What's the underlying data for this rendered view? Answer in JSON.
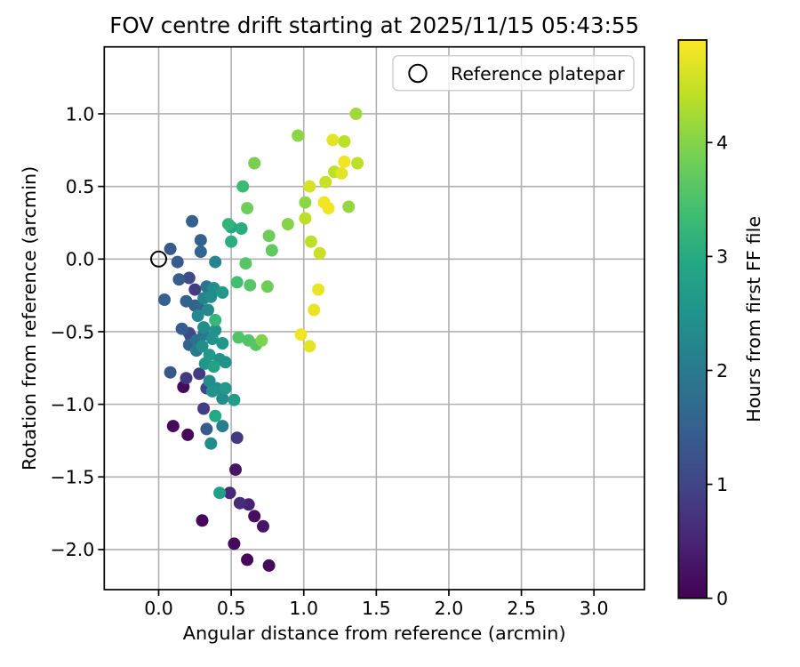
{
  "figure": {
    "title": "FOV centre drift starting at 2025/11/15 05:43:55"
  },
  "chart_data": {
    "type": "scatter",
    "title": "FOV centre drift starting at 2025/11/15 05:43:55",
    "xlabel": "Angular distance from reference (arcmin)",
    "ylabel": "Rotation from reference (arcmin)",
    "xlim": [
      -0.375,
      3.348
    ],
    "ylim": [
      -2.276,
      1.461
    ],
    "xticks": [
      0.0,
      0.5,
      1.0,
      1.5,
      2.0,
      2.5,
      3.0
    ],
    "yticks": [
      1.0,
      0.5,
      0.0,
      -0.5,
      -1.0,
      -1.5,
      -2.0
    ],
    "grid": true,
    "legend": {
      "position": "upper right",
      "entries": [
        {
          "label": "Reference platepar",
          "marker": "open-circle"
        }
      ]
    },
    "colorbar": {
      "label": "Hours from first FF file",
      "colormap": "viridis",
      "vmin": 0,
      "vmax": 4.9,
      "ticks": [
        0,
        1,
        2,
        3,
        4
      ]
    },
    "reference_point": {
      "x": 0.0,
      "y": 0.0
    },
    "series": [
      {
        "name": "FOV centre drift",
        "color_by": "hours_from_first_FF_file",
        "points": [
          [
            0.3,
            -1.8,
            0.08
          ],
          [
            0.61,
            -2.07,
            0.1
          ],
          [
            0.1,
            -1.15,
            0.1
          ],
          [
            0.2,
            -1.21,
            0.1
          ],
          [
            0.17,
            -0.88,
            0.12
          ],
          [
            0.52,
            -1.96,
            0.12
          ],
          [
            0.76,
            -2.11,
            0.15
          ],
          [
            0.66,
            -1.77,
            0.2
          ],
          [
            0.53,
            -1.45,
            0.25
          ],
          [
            0.72,
            -1.84,
            0.28
          ],
          [
            0.62,
            -1.69,
            0.45
          ],
          [
            0.49,
            -1.61,
            0.55
          ],
          [
            0.56,
            -1.68,
            0.6
          ],
          [
            0.25,
            -0.21,
            0.85
          ],
          [
            0.54,
            -1.23,
            0.8
          ],
          [
            0.28,
            -0.79,
            0.85
          ],
          [
            0.31,
            -1.03,
            0.88
          ],
          [
            0.19,
            -0.82,
            0.8
          ],
          [
            0.33,
            -0.89,
            1.0
          ],
          [
            0.21,
            -0.13,
            1.1
          ],
          [
            0.22,
            -0.53,
            1.05
          ],
          [
            0.21,
            -0.51,
            1.1
          ],
          [
            0.08,
            0.07,
            1.4
          ],
          [
            0.13,
            -0.02,
            1.4
          ],
          [
            0.14,
            -0.14,
            1.4
          ],
          [
            0.33,
            -1.17,
            1.4
          ],
          [
            0.08,
            -0.78,
            1.35
          ],
          [
            0.23,
            0.26,
            1.5
          ],
          [
            0.29,
            0.13,
            1.5
          ],
          [
            0.19,
            -0.29,
            1.5
          ],
          [
            0.25,
            -0.32,
            1.5
          ],
          [
            0.04,
            -0.28,
            1.5
          ],
          [
            0.16,
            -0.48,
            1.45
          ],
          [
            0.29,
            0.05,
            1.6
          ],
          [
            0.28,
            -0.34,
            1.6
          ],
          [
            0.21,
            -0.59,
            1.55
          ],
          [
            0.33,
            -0.19,
            1.9
          ],
          [
            0.26,
            -0.56,
            1.85
          ],
          [
            0.31,
            -0.52,
            1.95
          ],
          [
            0.26,
            -0.63,
            2.0
          ],
          [
            0.44,
            -1.15,
            2.1
          ],
          [
            0.39,
            -0.02,
            2.2
          ],
          [
            0.31,
            -0.27,
            2.2
          ],
          [
            0.34,
            -0.35,
            2.3
          ],
          [
            0.27,
            -0.39,
            2.3
          ],
          [
            0.35,
            -0.84,
            2.35
          ],
          [
            0.38,
            -0.2,
            2.4
          ],
          [
            0.36,
            -0.26,
            2.4
          ],
          [
            0.31,
            -0.47,
            2.4
          ],
          [
            0.3,
            -0.6,
            2.4
          ],
          [
            0.4,
            -0.89,
            2.4
          ],
          [
            0.44,
            -0.96,
            2.4
          ],
          [
            0.36,
            -1.27,
            2.4
          ],
          [
            0.39,
            -0.49,
            2.5
          ],
          [
            0.37,
            -0.55,
            2.5
          ],
          [
            0.42,
            -0.69,
            2.5
          ],
          [
            0.46,
            -0.71,
            2.5
          ],
          [
            0.37,
            -0.91,
            2.5
          ],
          [
            0.44,
            -0.58,
            2.55
          ],
          [
            0.32,
            -0.72,
            2.55
          ],
          [
            0.44,
            -0.23,
            2.6
          ],
          [
            0.35,
            -0.66,
            2.6
          ],
          [
            0.46,
            -0.89,
            2.6
          ],
          [
            0.52,
            -0.97,
            2.7
          ],
          [
            0.42,
            -1.61,
            2.75
          ],
          [
            0.38,
            -0.74,
            2.8
          ],
          [
            0.39,
            -1.08,
            2.95
          ],
          [
            0.5,
            0.22,
            2.95
          ],
          [
            0.5,
            0.12,
            3.05
          ],
          [
            0.57,
            0.21,
            3.05
          ],
          [
            0.48,
            0.24,
            3.2
          ],
          [
            0.58,
            0.5,
            3.35
          ],
          [
            0.54,
            -0.16,
            3.4
          ],
          [
            0.39,
            -0.42,
            3.25
          ],
          [
            0.6,
            -0.03,
            3.6
          ],
          [
            0.63,
            -0.18,
            3.6
          ],
          [
            0.55,
            -0.54,
            3.55
          ],
          [
            0.62,
            -0.56,
            3.55
          ],
          [
            0.67,
            -0.59,
            3.6
          ],
          [
            0.78,
            0.06,
            3.7
          ],
          [
            0.76,
            0.16,
            3.8
          ],
          [
            0.75,
            -0.19,
            3.8
          ],
          [
            0.66,
            0.66,
            3.9
          ],
          [
            0.61,
            0.35,
            3.8
          ],
          [
            0.71,
            -0.56,
            3.95
          ],
          [
            0.89,
            0.24,
            4.0
          ],
          [
            0.96,
            0.85,
            4.05
          ],
          [
            1.01,
            0.39,
            4.05
          ],
          [
            1.31,
            0.36,
            4.1
          ],
          [
            1.36,
            1.0,
            4.2
          ],
          [
            1.28,
            0.81,
            4.4
          ],
          [
            1.21,
            0.6,
            4.4
          ],
          [
            1.01,
            0.28,
            4.4
          ],
          [
            1.05,
            0.12,
            4.4
          ],
          [
            1.37,
            0.66,
            4.4
          ],
          [
            1.15,
            0.53,
            4.5
          ],
          [
            1.11,
            0.04,
            4.5
          ],
          [
            1.04,
            0.5,
            4.6
          ],
          [
            1.2,
            0.82,
            4.7
          ],
          [
            1.26,
            0.59,
            4.7
          ],
          [
            1.04,
            -0.6,
            4.7
          ],
          [
            1.1,
            -0.21,
            4.75
          ],
          [
            1.07,
            -0.35,
            4.75
          ],
          [
            1.28,
            0.67,
            4.8
          ],
          [
            1.14,
            0.39,
            4.8
          ],
          [
            1.17,
            0.35,
            4.8
          ],
          [
            0.98,
            -0.52,
            4.8
          ]
        ]
      }
    ]
  },
  "colors": {
    "background": "#ffffff",
    "grid": "#b0b0b0",
    "spine": "#000000",
    "text": "#000000",
    "legend_border": "#cccccc",
    "reference_marker": "#000000"
  }
}
